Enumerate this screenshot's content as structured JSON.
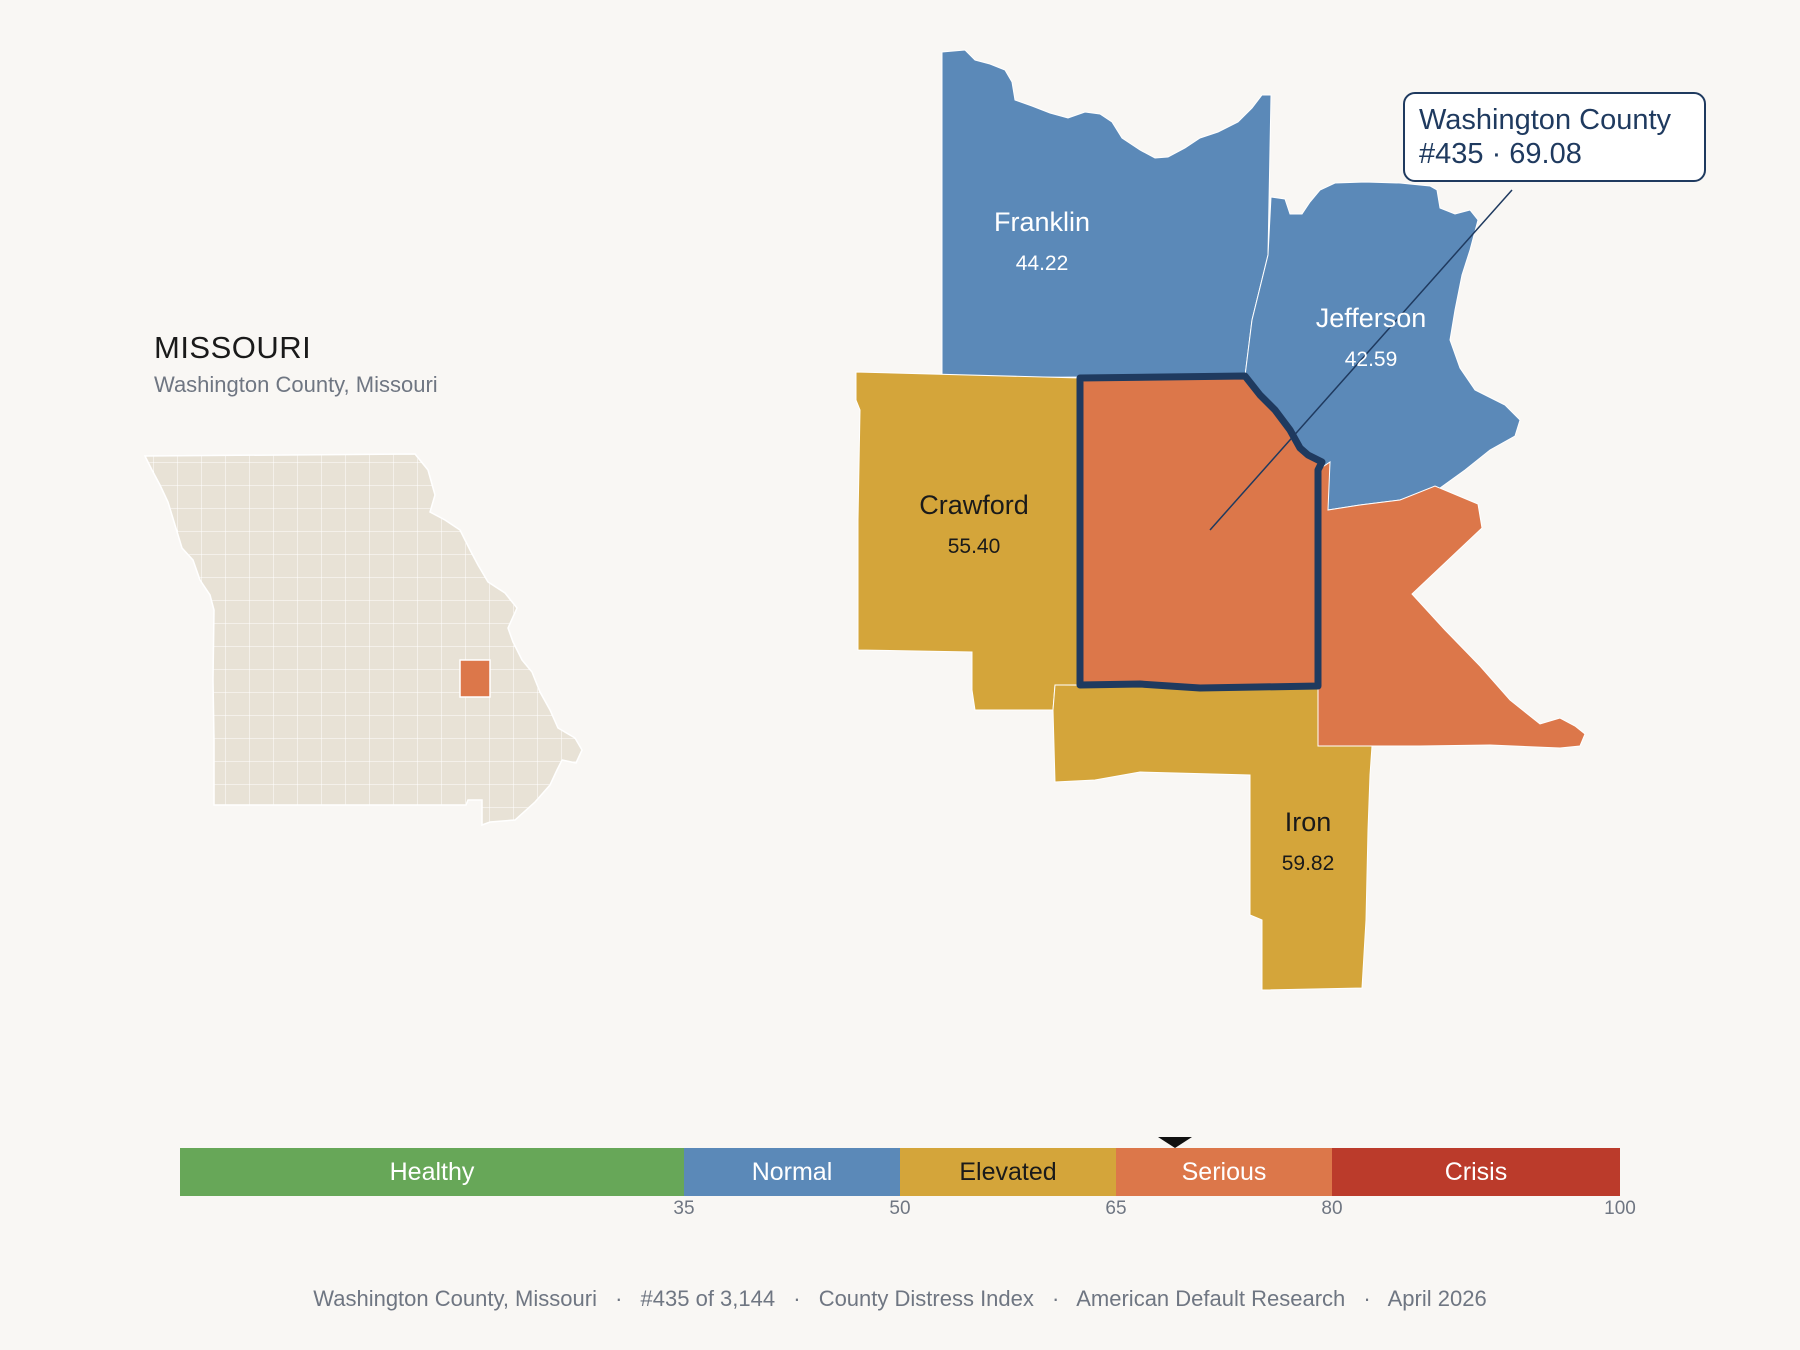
{
  "state": {
    "title": "MISSOURI",
    "subtitle": "Washington County, Missouri"
  },
  "colors": {
    "background": "#f9f7f4",
    "healthy": "#67a758",
    "normal": "#5b89b8",
    "elevated": "#d4a53a",
    "serious": "#dc774a",
    "crisis": "#bb3b2b",
    "highlight_outline": "#1f3a5f",
    "state_fill": "#e8e2d6"
  },
  "counties": [
    {
      "name": "Franklin",
      "score": "44.22",
      "band": "normal"
    },
    {
      "name": "Jefferson",
      "score": "42.59",
      "band": "normal"
    },
    {
      "name": "Crawford",
      "score": "55.40",
      "band": "elevated"
    },
    {
      "name": "Iron",
      "score": "59.82",
      "band": "elevated"
    },
    {
      "name": "Washington County",
      "score": "69.08",
      "band": "serious"
    },
    {
      "name": "",
      "score": "",
      "band": "serious"
    }
  ],
  "callout": {
    "line1": "Washington County",
    "line2": "#435 · 69.08"
  },
  "legend": {
    "segments": [
      {
        "label": "Healthy",
        "from": 0,
        "to": 35,
        "color": "#67a758",
        "text_color": "#ffffff"
      },
      {
        "label": "Normal",
        "from": 35,
        "to": 50,
        "color": "#5b89b8",
        "text_color": "#ffffff"
      },
      {
        "label": "Elevated",
        "from": 50,
        "to": 65,
        "color": "#d4a53a",
        "text_color": "#1a1a1a"
      },
      {
        "label": "Serious",
        "from": 65,
        "to": 80,
        "color": "#dc774a",
        "text_color": "#ffffff"
      },
      {
        "label": "Crisis",
        "from": 80,
        "to": 100,
        "color": "#bb3b2b",
        "text_color": "#ffffff"
      }
    ],
    "ticks": [
      "35",
      "50",
      "65",
      "80",
      "100"
    ],
    "marker_value": 69.08
  },
  "footer": {
    "county": "Washington County, Missouri",
    "rank": "#435 of 3,144",
    "index": "County Distress Index",
    "source": "American Default Research",
    "date": "April 2026",
    "separator": "·"
  }
}
